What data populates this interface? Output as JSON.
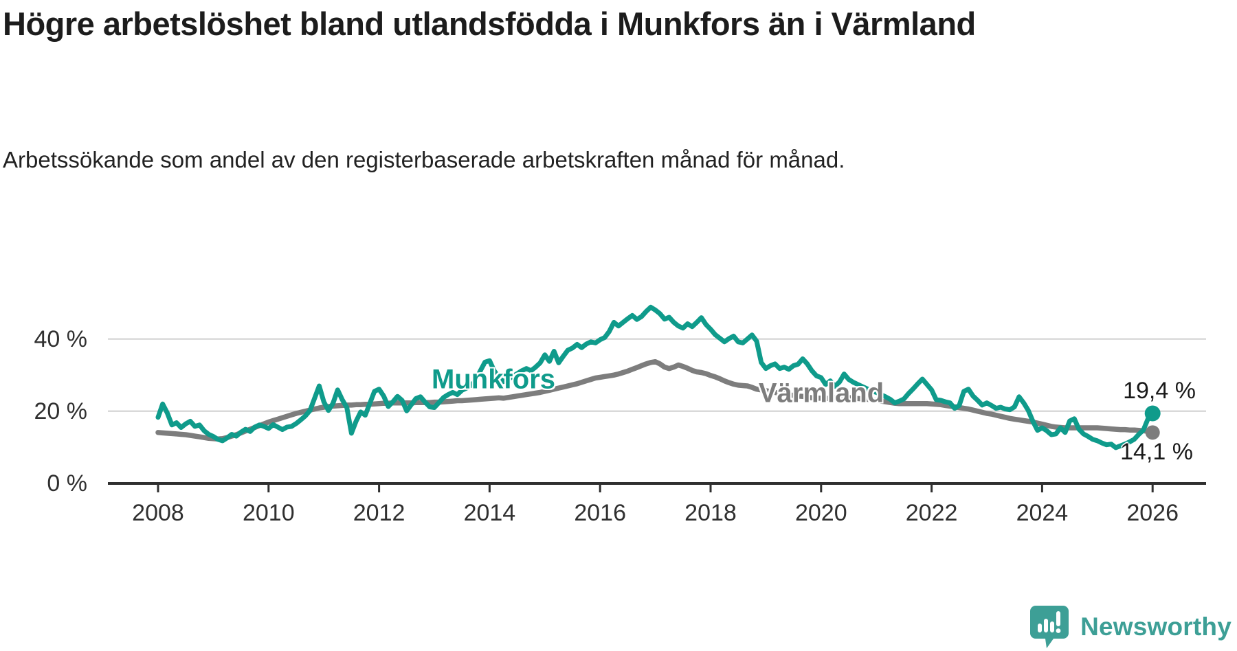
{
  "header": {
    "title": "Högre arbetslöshet bland utlandsfödda i Munkfors än i Värmland",
    "subtitle": "Arbetssökande som andel av den registerbaserade arbetskraften månad för månad."
  },
  "chart_data": {
    "type": "line",
    "title": "Högre arbetslöshet bland utlandsfödda i Munkfors än i Värmland",
    "unit": "%",
    "grid": "horizontal",
    "legend": "inline-labels",
    "x_axis": {
      "ticks": [
        2008,
        2010,
        2012,
        2014,
        2016,
        2018,
        2020,
        2022,
        2024,
        2026
      ]
    },
    "y_axis": {
      "ticks": [
        {
          "value": 0,
          "label": "0 %"
        },
        {
          "value": 20,
          "label": "20 %"
        },
        {
          "value": 40,
          "label": "40 %"
        }
      ],
      "range": [
        0,
        52
      ]
    },
    "frequency": "monthly",
    "start": "2008-01",
    "end": "2026-01",
    "series": [
      {
        "name": "Munkfors",
        "color": "#0f9b8b",
        "end_label": "19,4 %",
        "end_value": 19.4,
        "values": [
          18.3,
          22,
          19.5,
          16.2,
          16.8,
          15.5,
          16.5,
          17.2,
          15.8,
          16.2,
          14.6,
          13.6,
          13,
          12.2,
          11.8,
          12.6,
          13.6,
          13.1,
          14.2,
          15,
          14.4,
          15.6,
          16.2,
          15.8,
          15.2,
          16.3,
          15.6,
          14.9,
          15.6,
          15.8,
          16.6,
          17.6,
          18.7,
          20.2,
          23.6,
          27,
          22.6,
          20.2,
          22.2,
          25.9,
          23.2,
          21,
          13.9,
          17.2,
          19.8,
          18.9,
          22.2,
          25.5,
          26.1,
          24.2,
          21.3,
          22.6,
          24.1,
          23,
          20.1,
          21.8,
          23.5,
          24,
          22.5,
          21.2,
          21,
          22.4,
          23.8,
          24.6,
          25.2,
          24.6,
          25.8,
          26.4,
          27.2,
          28.6,
          31.2,
          33.6,
          34,
          31.2,
          29.4,
          28.2,
          28.8,
          29.6,
          30.4,
          31.2,
          31.8,
          31.2,
          32.2,
          33.4,
          35.6,
          33.8,
          36.6,
          33.4,
          35.2,
          36.9,
          37.5,
          38.5,
          37.6,
          38.6,
          39.2,
          38.9,
          39.8,
          40.4,
          42.1,
          44.6,
          43.6,
          44.6,
          45.6,
          46.5,
          45.4,
          46.2,
          47.6,
          48.8,
          48,
          47,
          45.5,
          46,
          44.6,
          43.6,
          43,
          44.2,
          43.4,
          44.6,
          45.9,
          44,
          42.7,
          41.2,
          40.2,
          39.2,
          40.1,
          40.8,
          39.2,
          38.9,
          40,
          41.1,
          39.4,
          33.5,
          31.8,
          32.6,
          33.1,
          31.8,
          32.2,
          31.6,
          32.6,
          33,
          34.5,
          33.1,
          31.2,
          29.8,
          29.3,
          27.4,
          28.4,
          26.9,
          28.1,
          30.3,
          28.8,
          28,
          27.4,
          26.8,
          26.2,
          25.6,
          25.2,
          24.6,
          24,
          23.3,
          22.3,
          22.8,
          23.4,
          24.9,
          26.2,
          27.6,
          28.9,
          27.4,
          25.9,
          23.2,
          23,
          22.6,
          22.3,
          20.8,
          21.6,
          25.5,
          26.1,
          24.2,
          23,
          21.7,
          22.3,
          21.6,
          20.8,
          21.1,
          20.6,
          20.4,
          21.2,
          24,
          22.3,
          20.2,
          17.2,
          14.7,
          15.4,
          14.6,
          13.5,
          13.7,
          15.4,
          14.1,
          17.3,
          17.9,
          15,
          13.7,
          13,
          12.2,
          11.8,
          11.2,
          10.7,
          10.9,
          9.9,
          10.4,
          10.9,
          11.5,
          12.2,
          13.6,
          14.8,
          17.9,
          19.4
        ]
      },
      {
        "name": "Värmland",
        "color": "#7d7d7d",
        "end_label": "14,1 %",
        "end_value": 14.1,
        "values": [
          14.1,
          14,
          13.9,
          13.8,
          13.7,
          13.6,
          13.5,
          13.3,
          13.1,
          12.9,
          12.7,
          12.5,
          12.4,
          12.3,
          12.4,
          12.7,
          13.1,
          13.5,
          14,
          14.5,
          15,
          15.5,
          16,
          16.5,
          17,
          17.4,
          17.8,
          18.2,
          18.6,
          19,
          19.4,
          19.7,
          20,
          20.3,
          20.6,
          20.9,
          21.1,
          21.3,
          21.4,
          21.5,
          21.6,
          21.7,
          21.7,
          21.8,
          21.8,
          21.9,
          21.9,
          22,
          22.1,
          22.2,
          22.2,
          22.3,
          22.3,
          22.3,
          22.3,
          22.3,
          22.4,
          22.4,
          22.4,
          22.4,
          22.5,
          22.5,
          22.6,
          22.7,
          22.8,
          22.9,
          22.9,
          23,
          23.1,
          23.2,
          23.3,
          23.4,
          23.5,
          23.6,
          23.7,
          23.6,
          23.8,
          24,
          24.2,
          24.4,
          24.6,
          24.8,
          25,
          25.2,
          25.5,
          25.8,
          26.1,
          26.4,
          26.7,
          27,
          27.3,
          27.6,
          28,
          28.4,
          28.8,
          29.2,
          29.4,
          29.6,
          29.8,
          30,
          30.3,
          30.7,
          31.1,
          31.6,
          32.1,
          32.6,
          33.1,
          33.5,
          33.7,
          33.1,
          32.2,
          31.8,
          32.2,
          32.8,
          32.4,
          31.9,
          31.3,
          30.9,
          30.7,
          30.4,
          29.9,
          29.5,
          29,
          28.4,
          27.9,
          27.5,
          27.2,
          27.1,
          27,
          26.6,
          26.1,
          25.9,
          25.7,
          25.4,
          25.2,
          24.9,
          24.7,
          24.5,
          24.4,
          24.2,
          24.1,
          23.9,
          23.7,
          23.6,
          23.6,
          23.5,
          23.6,
          23.8,
          24,
          23.9,
          23.8,
          23.6,
          23.5,
          23.4,
          23.3,
          23.2,
          23,
          22.8,
          22.6,
          22.4,
          22.2,
          22.1,
          22.1,
          22.1,
          22.1,
          22.1,
          22.1,
          22.1,
          22,
          21.9,
          21.8,
          21.6,
          21.4,
          21.2,
          21,
          20.8,
          20.6,
          20.3,
          20,
          19.7,
          19.4,
          19.2,
          18.9,
          18.6,
          18.3,
          18,
          17.8,
          17.6,
          17.4,
          17.2,
          17,
          16.7,
          16.4,
          16.1,
          15.8,
          15.6,
          15.5,
          15.4,
          15.4,
          15.4,
          15.4,
          15.4,
          15.4,
          15.4,
          15.4,
          15.3,
          15.2,
          15.1,
          15,
          14.9,
          14.9,
          14.8,
          14.8,
          14.7,
          14.6,
          14.4,
          14.1
        ]
      }
    ]
  },
  "footer": {
    "logo_text": "Newsworthy"
  }
}
